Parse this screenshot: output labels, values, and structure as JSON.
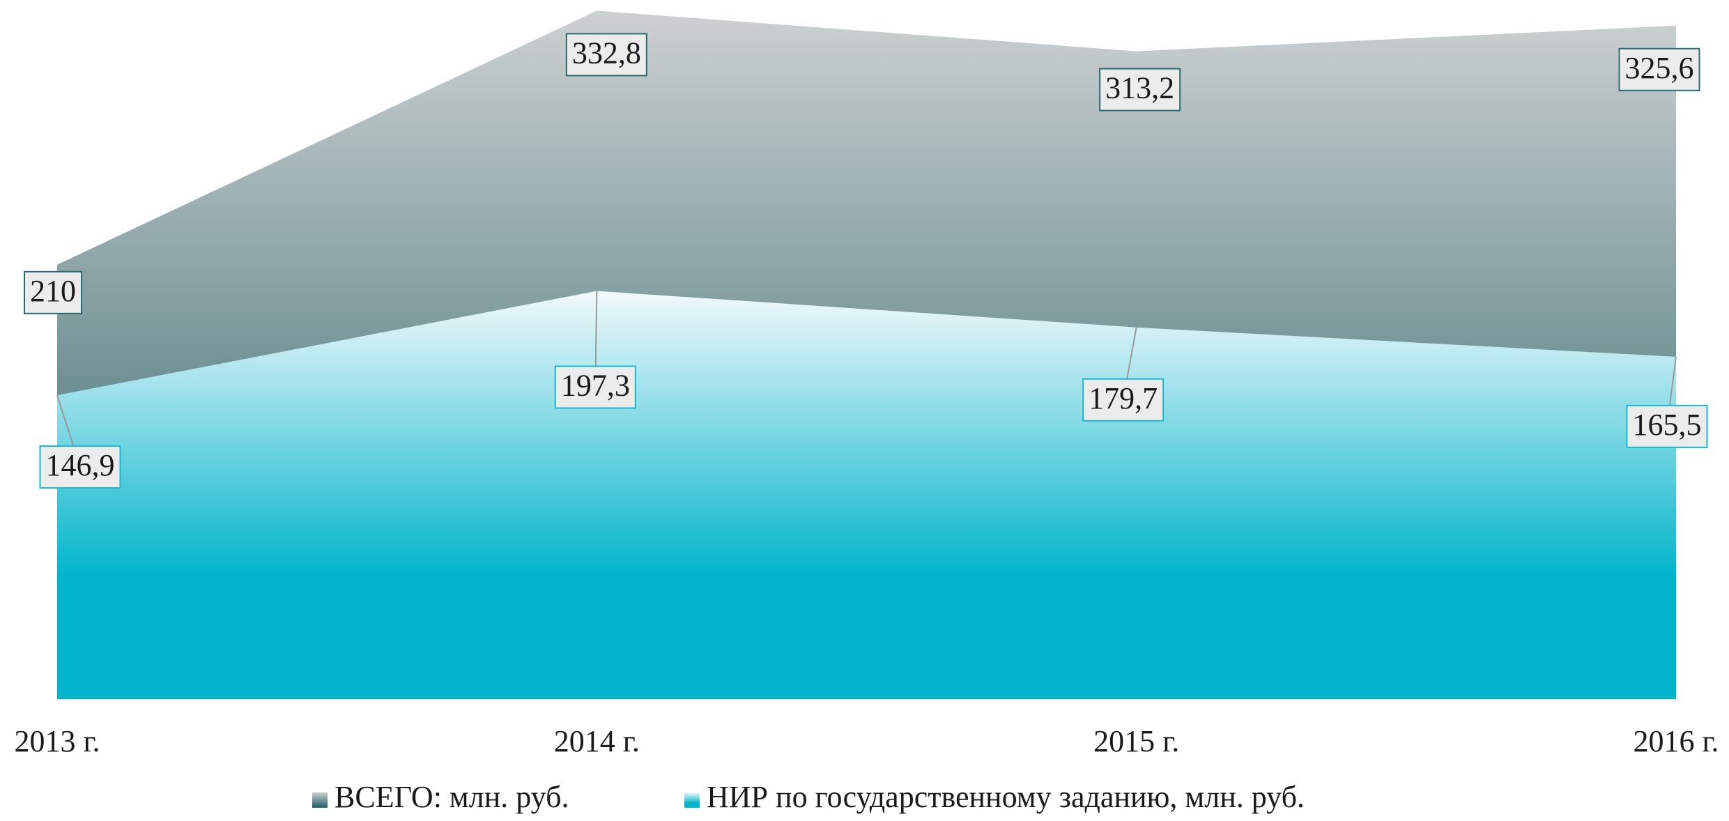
{
  "chart_data": {
    "type": "area",
    "categories": [
      "2013 г.",
      "2014 г.",
      "2015 г.",
      "2016 г."
    ],
    "series": [
      {
        "name": "ВСЕГО: млн. руб.",
        "color": "#1f5d62",
        "values": [
          210,
          332.8,
          313.2,
          325.6
        ],
        "value_labels": [
          "210",
          "332,8",
          "313,2",
          "325,6"
        ]
      },
      {
        "name": "НИР по государственному заданию, млн. руб.",
        "color": "#00b5cc",
        "values": [
          146.9,
          197.3,
          179.7,
          165.5
        ],
        "value_labels": [
          "146,9",
          "197,3",
          "179,7",
          "165,5"
        ]
      }
    ],
    "ylim": [
      0,
      338
    ]
  }
}
